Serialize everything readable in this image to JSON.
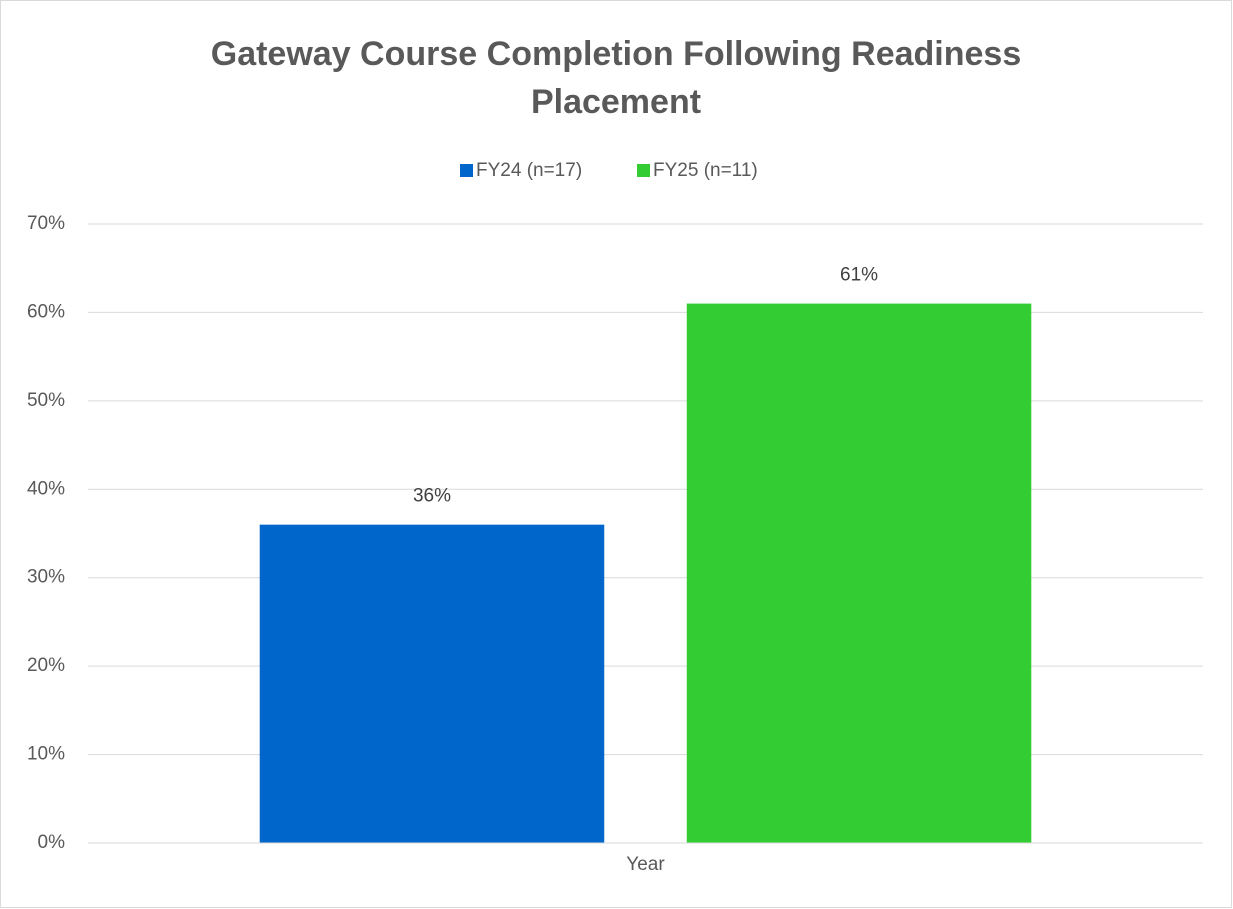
{
  "chart_data": {
    "type": "bar",
    "title": "Gateway Course Completion Following Readiness Placement",
    "x_label": "Year",
    "categories": [
      null
    ],
    "series": [
      {
        "name": "FY24 (n=17)",
        "color": "#0066cc",
        "values": [
          36
        ],
        "value_labels": [
          "36%"
        ]
      },
      {
        "name": "FY25 (n=11)",
        "color": "#33cc33",
        "values": [
          61
        ],
        "value_labels": [
          "61%"
        ]
      }
    ],
    "ylim": [
      0,
      70
    ],
    "yticks": [
      {
        "value": 0,
        "label": "0%"
      },
      {
        "value": 10,
        "label": "10%"
      },
      {
        "value": 20,
        "label": "20%"
      },
      {
        "value": 30,
        "label": "30%"
      },
      {
        "value": 40,
        "label": "40%"
      },
      {
        "value": 50,
        "label": "50%"
      },
      {
        "value": 60,
        "label": "60%"
      },
      {
        "value": 70,
        "label": "70%"
      }
    ],
    "grid": true,
    "legend": "top"
  }
}
